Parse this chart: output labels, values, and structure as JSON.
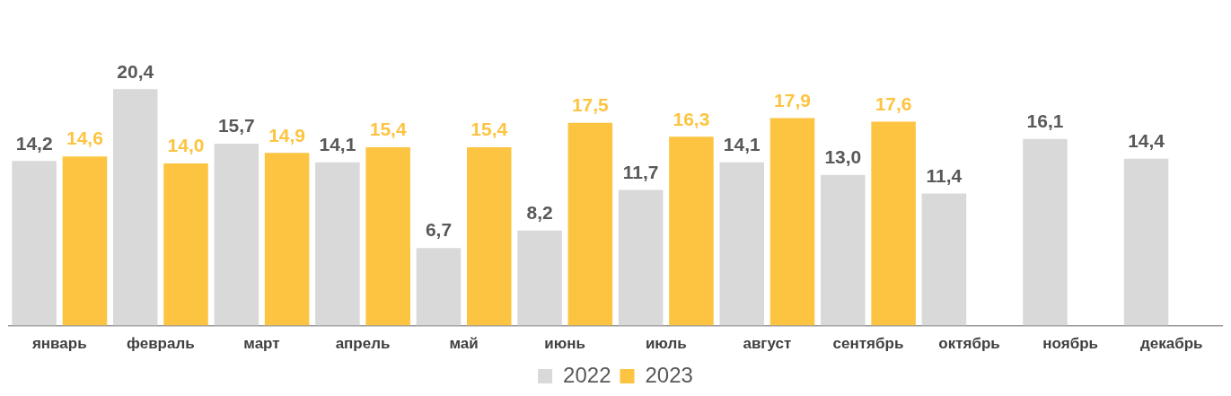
{
  "chart_data": {
    "type": "bar",
    "categories": [
      "январь",
      "февраль",
      "март",
      "апрель",
      "май",
      "июнь",
      "июль",
      "август",
      "сентябрь",
      "октябрь",
      "ноябрь",
      "декабрь"
    ],
    "series": [
      {
        "name": "2022",
        "color": "#d9d9d9",
        "values": [
          14.2,
          20.4,
          15.7,
          14.1,
          6.7,
          8.2,
          11.7,
          14.1,
          13.0,
          11.4,
          16.1,
          14.4
        ],
        "value_labels": [
          "14,2",
          "20,4",
          "15,7",
          "14,1",
          "6,7",
          "8,2",
          "11,7",
          "14,1",
          "13,0",
          "11,4",
          "16,1",
          "14,4"
        ]
      },
      {
        "name": "2023",
        "color": "#fdc441",
        "values": [
          14.6,
          14.0,
          14.9,
          15.4,
          15.4,
          17.5,
          16.3,
          17.9,
          17.6,
          null,
          null,
          null
        ],
        "value_labels": [
          "14,6",
          "14,0",
          "14,9",
          "15,4",
          "15,4",
          "17,5",
          "16,3",
          "17,9",
          "17,6",
          null,
          null,
          null
        ]
      }
    ],
    "legend": "bottom",
    "grid": false
  }
}
